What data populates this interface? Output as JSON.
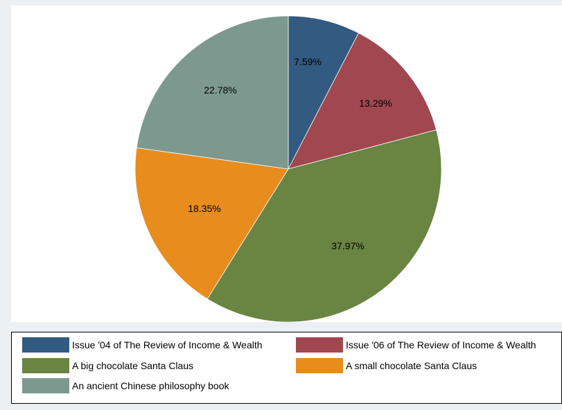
{
  "chart_data": {
    "type": "pie",
    "slices": [
      {
        "label": "Issue '04 of The Review of Income & Wealth",
        "value": 7.59,
        "value_label": "7.59%",
        "color": "#335a80"
      },
      {
        "label": "Issue '06 of The Review of Income & Wealth",
        "value": 13.29,
        "value_label": "13.29%",
        "color": "#a0474f"
      },
      {
        "label": "A big chocolate Santa Claus",
        "value": 37.97,
        "value_label": "37.97%",
        "color": "#6a8442"
      },
      {
        "label": "A small chocolate Santa Claus",
        "value": 18.35,
        "value_label": "18.35%",
        "color": "#e88c1e"
      },
      {
        "label": "An ancient Chinese philosophy book",
        "value": 22.78,
        "value_label": "22.78%",
        "color": "#7d998f"
      }
    ],
    "start_angle": "12 o'clock",
    "direction": "clockwise",
    "legend_position": "bottom"
  }
}
